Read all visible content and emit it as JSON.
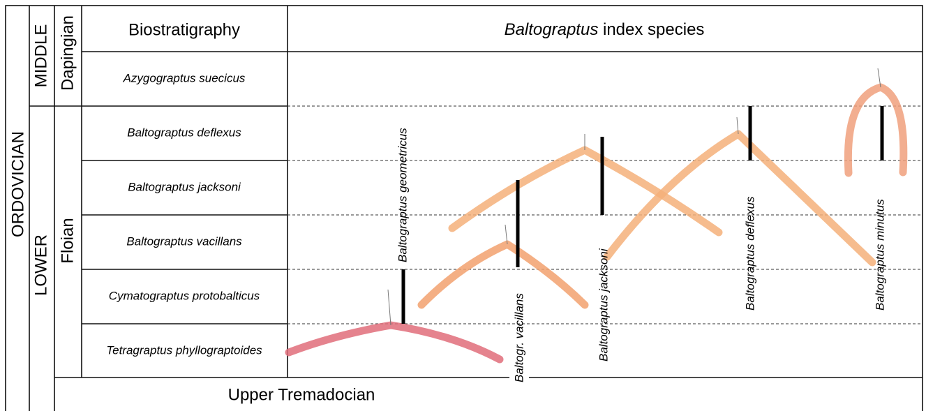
{
  "header": {
    "biostratigraphy": "Biostratigraphy",
    "index_genus": "Baltograptus",
    "index_rest": "index species"
  },
  "system": "ORDOVICIAN",
  "series": [
    "MIDDLE",
    "LOWER"
  ],
  "stages": [
    "Dapingian",
    "Floian"
  ],
  "zones": [
    "Azygograptus suecicus",
    "Baltograptus deflexus",
    "Baltograptus jacksoni",
    "Baltograptus vacillans",
    "Cymatograptus protobalticus",
    "Tetragraptus phyllograptoides"
  ],
  "base": "Upper Tremadocian",
  "species": [
    "Baltograptus geometricus",
    "Baltogr. vacillans",
    "Baltograptus jacksoni",
    "Baltograptus deflexus",
    "Baltograptus minutus"
  ]
}
